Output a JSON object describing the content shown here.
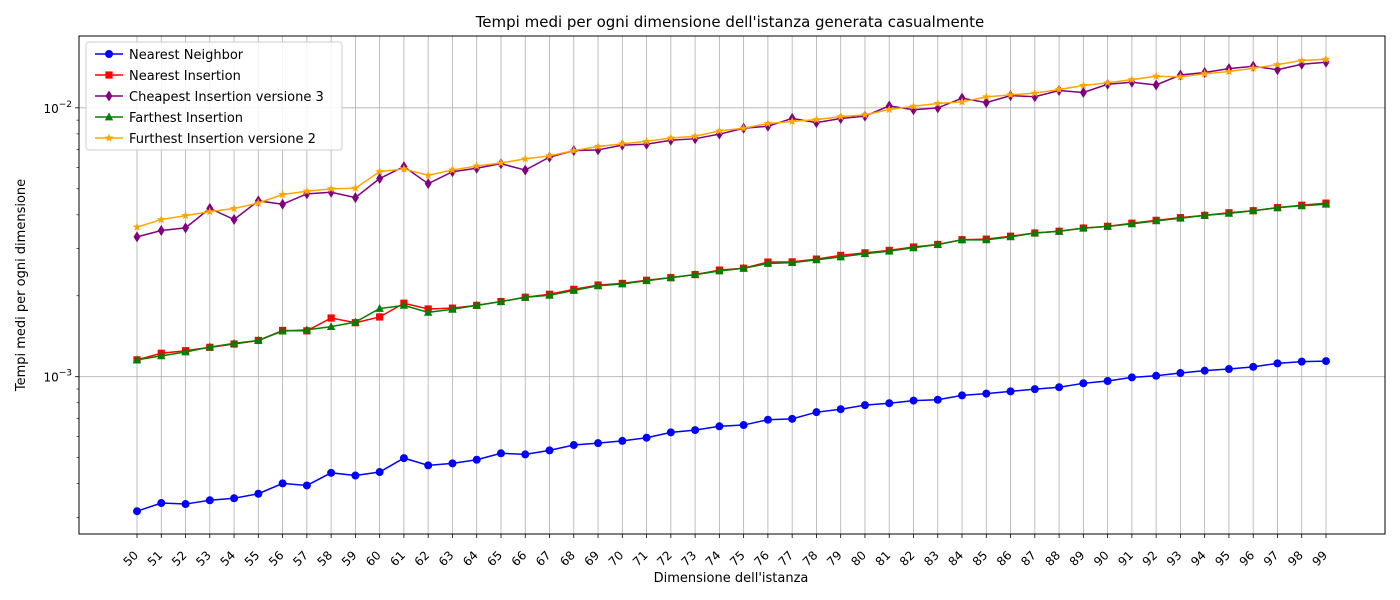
{
  "chart_data": {
    "type": "line",
    "title": "Tempi medi per ogni dimensione dell'istanza generata casualmente",
    "xlabel": "Dimensione dell'istanza",
    "ylabel": "Tempi medi per ogni dimensione",
    "y_scale": "log",
    "ylim": [
      0.00026,
      0.0185
    ],
    "grid": true,
    "legend_position": "top-left",
    "x": [
      50,
      51,
      52,
      53,
      54,
      55,
      56,
      57,
      58,
      59,
      60,
      61,
      62,
      63,
      64,
      65,
      66,
      67,
      68,
      69,
      70,
      71,
      72,
      73,
      74,
      75,
      76,
      77,
      78,
      79,
      80,
      81,
      82,
      83,
      84,
      85,
      86,
      87,
      88,
      89,
      90,
      91,
      92,
      93,
      94,
      95,
      96,
      97,
      98,
      99
    ],
    "y_ticks": [
      {
        "value": 0.001,
        "base": "10",
        "exp": "−3"
      },
      {
        "value": 0.01,
        "base": "10",
        "exp": "−2"
      }
    ],
    "series": [
      {
        "name": "Nearest Neighbor",
        "color": "#0000ff",
        "marker": "circle",
        "values": [
          0.000316,
          0.000339,
          0.000336,
          0.000347,
          0.000353,
          0.000367,
          0.000401,
          0.000394,
          0.000439,
          0.000429,
          0.000442,
          0.000498,
          0.000468,
          0.000476,
          0.000491,
          0.000519,
          0.000514,
          0.000532,
          0.000557,
          0.000566,
          0.000577,
          0.000593,
          0.000621,
          0.000633,
          0.000654,
          0.000661,
          0.000692,
          0.000697,
          0.000738,
          0.000757,
          0.000784,
          0.000797,
          0.000815,
          0.000821,
          0.000852,
          0.000865,
          0.000882,
          0.000899,
          0.000914,
          0.000945,
          0.000964,
          0.000994,
          0.001008,
          0.001032,
          0.001053,
          0.001068,
          0.001088,
          0.001121,
          0.001138,
          0.001143
        ]
      },
      {
        "name": "Nearest Insertion",
        "color": "#ff0000",
        "marker": "square",
        "values": [
          0.001155,
          0.001222,
          0.001249,
          0.001286,
          0.001323,
          0.001364,
          0.001486,
          0.001481,
          0.001653,
          0.001588,
          0.001668,
          0.001876,
          0.001786,
          0.001799,
          0.001842,
          0.001903,
          0.001974,
          0.002026,
          0.002113,
          0.002192,
          0.002223,
          0.002284,
          0.002335,
          0.002398,
          0.002492,
          0.002532,
          0.002669,
          0.002674,
          0.002738,
          0.002826,
          0.002889,
          0.002949,
          0.003036,
          0.003103,
          0.003232,
          0.003248,
          0.003331,
          0.003422,
          0.003474,
          0.003571,
          0.003624,
          0.003722,
          0.003815,
          0.003904,
          0.003982,
          0.004071,
          0.004143,
          0.004253,
          0.004342,
          0.004421
        ]
      },
      {
        "name": "Cheapest Insertion versione 3",
        "color": "#800080",
        "marker": "diamond",
        "values": [
          0.003312,
          0.003498,
          0.003577,
          0.004228,
          0.003842,
          0.004509,
          0.004381,
          0.004787,
          0.004852,
          0.004635,
          0.005457,
          0.006046,
          0.005223,
          0.005786,
          0.005961,
          0.006198,
          0.005866,
          0.006557,
          0.006933,
          0.006973,
          0.007266,
          0.007319,
          0.007578,
          0.007678,
          0.007981,
          0.008397,
          0.008543,
          0.009139,
          0.008814,
          0.009129,
          0.009317,
          0.010162,
          0.009842,
          0.009992,
          0.010868,
          0.010456,
          0.011104,
          0.010999,
          0.011602,
          0.011405,
          0.012235,
          0.012447,
          0.012161,
          0.013244,
          0.013539,
          0.013985,
          0.014271,
          0.013863,
          0.014521,
          0.014771
        ]
      },
      {
        "name": "Farthest Insertion",
        "color": "#008000",
        "marker": "triangle",
        "values": [
          0.001155,
          0.001195,
          0.001236,
          0.001289,
          0.001331,
          0.001364,
          0.001478,
          0.001493,
          0.001536,
          0.001596,
          0.001793,
          0.001842,
          0.001736,
          0.001781,
          0.001842,
          0.001903,
          0.001974,
          0.002008,
          0.002092,
          0.002178,
          0.002213,
          0.002274,
          0.002335,
          0.002398,
          0.002473,
          0.002532,
          0.002636,
          0.002657,
          0.002719,
          0.002789,
          0.002866,
          0.00293,
          0.003016,
          0.003103,
          0.003232,
          0.003228,
          0.003313,
          0.003422,
          0.003474,
          0.003571,
          0.003624,
          0.003701,
          0.003797,
          0.003886,
          0.003982,
          0.004052,
          0.004143,
          0.004253,
          0.004322,
          0.004381
        ]
      },
      {
        "name": "Furthest Insertion versione 2",
        "color": "#ffa500",
        "marker": "star",
        "values": [
          0.003601,
          0.003841,
          0.003974,
          0.004112,
          0.004223,
          0.004427,
          0.00476,
          0.004897,
          0.004997,
          0.005025,
          0.005793,
          0.005925,
          0.005609,
          0.005871,
          0.006076,
          0.006234,
          0.00646,
          0.006629,
          0.006933,
          0.007179,
          0.007347,
          0.007504,
          0.007724,
          0.007842,
          0.008207,
          0.008397,
          0.008737,
          0.008903,
          0.009041,
          0.009272,
          0.009416,
          0.009855,
          0.010132,
          0.010381,
          0.010525,
          0.010982,
          0.011171,
          0.01134,
          0.0117,
          0.012108,
          0.012397,
          0.012732,
          0.013107,
          0.01304,
          0.013383,
          0.013645,
          0.01404,
          0.014472,
          0.015001,
          0.015153
        ]
      }
    ]
  }
}
